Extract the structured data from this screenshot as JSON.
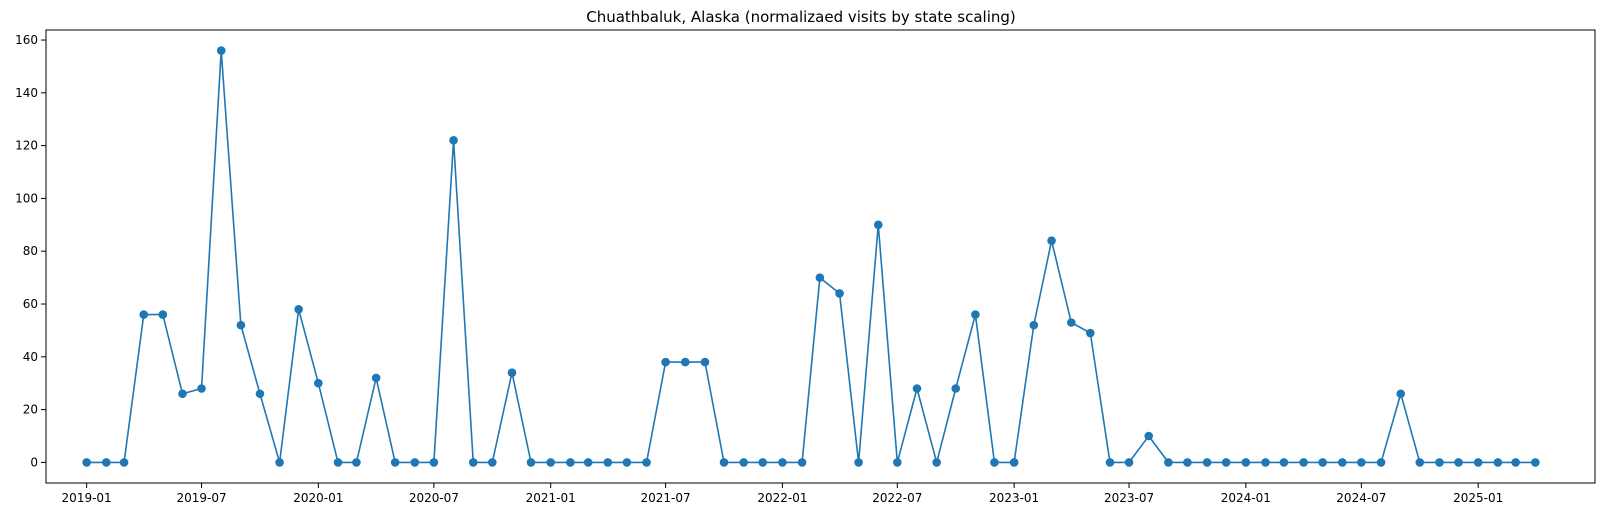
{
  "chart_data": {
    "type": "line",
    "title": "Chuathbaluk, Alaska (normalizaed visits by state scaling)",
    "xlabel": "",
    "ylabel": "",
    "x_axis_type": "date",
    "x": [
      "2019-01",
      "2019-02",
      "2019-03",
      "2019-04",
      "2019-05",
      "2019-06",
      "2019-07",
      "2019-08",
      "2019-09",
      "2019-10",
      "2019-11",
      "2019-12",
      "2020-01",
      "2020-02",
      "2020-03",
      "2020-04",
      "2020-05",
      "2020-06",
      "2020-07",
      "2020-08",
      "2020-09",
      "2020-10",
      "2020-11",
      "2020-12",
      "2021-01",
      "2021-02",
      "2021-03",
      "2021-04",
      "2021-05",
      "2021-06",
      "2021-07",
      "2021-08",
      "2021-09",
      "2021-10",
      "2021-11",
      "2021-12",
      "2022-01",
      "2022-02",
      "2022-03",
      "2022-04",
      "2022-05",
      "2022-06",
      "2022-07",
      "2022-08",
      "2022-09",
      "2022-10",
      "2022-11",
      "2022-12",
      "2023-01",
      "2023-02",
      "2023-03",
      "2023-04",
      "2023-05",
      "2023-06",
      "2023-07",
      "2023-08",
      "2023-09",
      "2023-10",
      "2023-11",
      "2023-12",
      "2024-01",
      "2024-02",
      "2024-03",
      "2024-04",
      "2024-05",
      "2024-06",
      "2024-07",
      "2024-08",
      "2024-09",
      "2024-10",
      "2024-11",
      "2024-12",
      "2025-01",
      "2025-02",
      "2025-03",
      "2025-04"
    ],
    "series": [
      {
        "values": [
          0,
          0,
          0,
          56,
          56,
          26,
          28,
          156,
          52,
          26,
          0,
          58,
          30,
          0,
          0,
          32,
          0,
          0,
          0,
          122,
          0,
          0,
          34,
          0,
          0,
          0,
          0,
          0,
          0,
          0,
          38,
          38,
          38,
          0,
          0,
          0,
          0,
          0,
          70,
          64,
          0,
          90,
          0,
          28,
          0,
          28,
          56,
          0,
          0,
          52,
          84,
          53,
          49,
          0,
          0,
          10,
          0,
          0,
          0,
          0,
          0,
          0,
          0,
          0,
          0,
          0,
          0,
          0,
          26,
          0,
          0,
          0,
          0,
          0,
          0,
          0
        ],
        "color": "#1f77b4"
      }
    ],
    "x_ticks": [
      "2019-01",
      "2019-07",
      "2020-01",
      "2020-07",
      "2021-01",
      "2021-07",
      "2022-01",
      "2022-07",
      "2023-01",
      "2023-07",
      "2024-01",
      "2024-07",
      "2025-01"
    ],
    "y_ticks": [
      0,
      20,
      40,
      60,
      80,
      100,
      120,
      140,
      160
    ],
    "xlim": [
      "2018-10-29",
      "2025-07-04"
    ],
    "ylim": [
      -7.8,
      163.8
    ],
    "grid": false,
    "legend": "none",
    "marker": "circle"
  }
}
